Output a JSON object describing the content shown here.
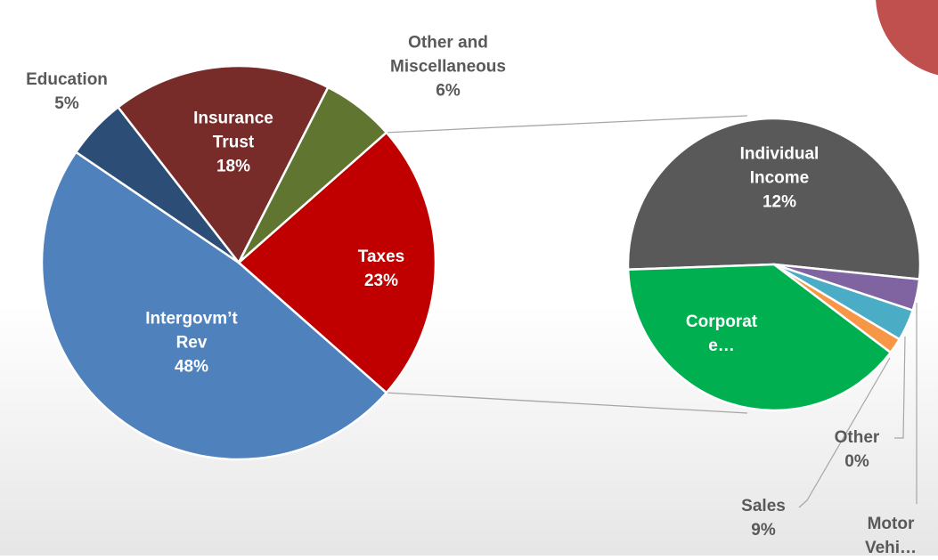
{
  "chart_data": [
    {
      "type": "pie",
      "categories": [
        "Taxes",
        "Intergovm’t Rev",
        "Education",
        "Insurance Trust",
        "Other and Miscellaneous"
      ],
      "values": [
        23,
        48,
        5,
        18,
        6
      ],
      "value_labels": [
        "23%",
        "48%",
        "5%",
        "18%",
        "6%"
      ],
      "colors": [
        "#c00000",
        "#4f81bd",
        "#2c4d76",
        "#772c2a",
        "#5f7530"
      ]
    },
    {
      "type": "pie",
      "categories": [
        "Individual Income",
        "Corporate…",
        "Motor Vehi…",
        "Other",
        "Sales"
      ],
      "values": [
        12,
        0.8,
        0.8,
        0.4,
        9
      ],
      "value_labels": [
        "12%",
        null,
        null,
        "0%",
        "9%"
      ],
      "colors": [
        "#595959",
        "#8064a2",
        "#4bacc6",
        "#f79646",
        "#00b050"
      ]
    }
  ]
}
